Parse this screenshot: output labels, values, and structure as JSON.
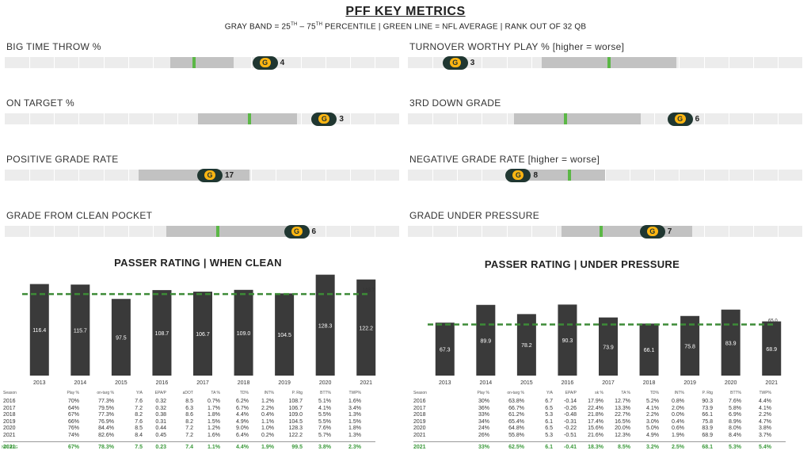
{
  "header": {
    "title": "PFF KEY METRICS",
    "subtitle_pre": "GRAY BAND = 25",
    "sup1": "TH",
    "subtitle_mid": " – 75",
    "sup2": "TH",
    "subtitle_post": " PERCENTILE | GREEN LINE = NFL AVERAGE | RANK OUT OF 32 QB"
  },
  "team_logo": "packers-g-logo",
  "logo_letter": "G",
  "colors": {
    "band": "#c2c2c2",
    "track": "#ececec",
    "avg_line": "#5bb746",
    "bar": "#3a3a3a",
    "avg_dash": "#3d8b37",
    "logo_bg": "#203731",
    "logo_g": "#ffb612"
  },
  "metrics": [
    {
      "label": "BIG TIME THROW %",
      "rank": "4",
      "band": [
        0.42,
        0.58
      ],
      "avg": 0.48,
      "player": 0.66
    },
    {
      "label": "TURNOVER WORTHY PLAY % [higher = worse]",
      "rank": "3",
      "band": [
        0.34,
        0.68
      ],
      "avg": 0.51,
      "player": 0.12
    },
    {
      "label": "ON TARGET %",
      "rank": "3",
      "band": [
        0.49,
        0.74
      ],
      "avg": 0.62,
      "player": 0.81
    },
    {
      "label": "3RD DOWN GRADE",
      "rank": "6",
      "band": [
        0.27,
        0.59
      ],
      "avg": 0.4,
      "player": 0.69
    },
    {
      "label": "POSITIVE GRADE RATE",
      "rank": "17",
      "band": [
        0.34,
        0.62
      ],
      "avg": 0.5,
      "player": 0.52
    },
    {
      "label": "NEGATIVE GRADE RATE [higher = worse]",
      "rank": "8",
      "band": [
        0.27,
        0.5
      ],
      "avg": 0.41,
      "player": 0.28
    },
    {
      "label": "GRADE FROM CLEAN POCKET",
      "rank": "6",
      "band": [
        0.41,
        0.73
      ],
      "avg": 0.54,
      "player": 0.74
    },
    {
      "label": "GRADE UNDER PRESSURE",
      "rank": "7",
      "band": [
        0.39,
        0.72
      ],
      "avg": 0.49,
      "player": 0.62
    }
  ],
  "chart_data": [
    {
      "type": "bar",
      "title": "PASSER RATING | WHEN CLEAN",
      "categories": [
        "2013",
        "2014",
        "2015",
        "2016",
        "2017",
        "2018",
        "2019",
        "2020",
        "2021"
      ],
      "values": [
        116.4,
        115.7,
        97.5,
        108.7,
        106.7,
        109.0,
        104.5,
        128.3,
        122.2
      ],
      "value_labels": [
        "116.4",
        "115.7",
        "97.5",
        "108.7",
        "106.7",
        "109.0",
        "104.5",
        "128.3",
        "122.2"
      ],
      "avg_line": 103.7,
      "avg_label": "103.7",
      "ylim": [
        0,
        135
      ]
    },
    {
      "type": "bar",
      "title": "PASSER RATING | UNDER PRESSURE",
      "categories": [
        "2013",
        "2014",
        "2015",
        "2016",
        "2017",
        "2018",
        "2019",
        "2020",
        "2021"
      ],
      "values": [
        67.3,
        89.9,
        78.2,
        90.3,
        73.9,
        66.1,
        75.8,
        83.9,
        68.9
      ],
      "value_labels": [
        "67.3",
        "89.9",
        "78.2",
        "90.3",
        "73.9",
        "66.1",
        "75.8",
        "83.9",
        "68.9"
      ],
      "avg_line": 65.0,
      "avg_label": "65.0",
      "ylim": [
        0,
        135
      ]
    }
  ],
  "tables": [
    {
      "headers": [
        "Season",
        "Play %",
        "on-targ %",
        "Y/A",
        "EPA/P",
        "aDOT",
        "TA %",
        "TD%",
        "INT%",
        "P. Rtg",
        "BTT%",
        "TWP%"
      ],
      "rows": [
        [
          "2016",
          "70%",
          "77.3%",
          "7.6",
          "0.32",
          "8.5",
          "0.7%",
          "6.2%",
          "1.2%",
          "108.7",
          "5.1%",
          "1.6%"
        ],
        [
          "2017",
          "64%",
          "79.5%",
          "7.2",
          "0.32",
          "6.3",
          "1.7%",
          "6.7%",
          "2.2%",
          "106.7",
          "4.1%",
          "3.4%"
        ],
        [
          "2018",
          "67%",
          "77.3%",
          "8.2",
          "0.38",
          "8.6",
          "1.8%",
          "4.4%",
          "0.4%",
          "109.0",
          "5.5%",
          "1.3%"
        ],
        [
          "2019",
          "66%",
          "76.9%",
          "7.6",
          "0.31",
          "8.2",
          "1.5%",
          "4.9%",
          "1.1%",
          "104.5",
          "5.5%",
          "1.5%"
        ],
        [
          "2020",
          "76%",
          "84.4%",
          "8.5",
          "0.44",
          "7.2",
          "1.2%",
          "9.0%",
          "1.0%",
          "128.3",
          "7.6%",
          "1.8%"
        ],
        [
          "2021",
          "74%",
          "82.6%",
          "8.4",
          "0.45",
          "7.2",
          "1.6%",
          "6.4%",
          "0.2%",
          "122.2",
          "5.7%",
          "1.3%"
        ]
      ],
      "avg_row": [
        "2021",
        "67%",
        "78.3%",
        "7.5",
        "0.23",
        "7.4",
        "1.1%",
        "4.4%",
        "1.9%",
        "99.5",
        "3.8%",
        "2.3%"
      ],
      "avg_label": "NFL AVG"
    },
    {
      "headers": [
        "Season",
        "Play %",
        "on-targ %",
        "Y/A",
        "EPA/P",
        "sk %",
        "TA %",
        "TD%",
        "INT%",
        "P. Rtg",
        "BTT%",
        "TWP%"
      ],
      "rows": [
        [
          "2016",
          "30%",
          "63.8%",
          "6.7",
          "-0.14",
          "17.9%",
          "12.7%",
          "5.2%",
          "0.8%",
          "90.3",
          "7.6%",
          "4.4%"
        ],
        [
          "2017",
          "36%",
          "66.7%",
          "6.5",
          "-0.26",
          "22.4%",
          "13.3%",
          "4.1%",
          "2.0%",
          "73.9",
          "5.8%",
          "4.1%"
        ],
        [
          "2018",
          "33%",
          "61.2%",
          "5.3",
          "-0.48",
          "21.8%",
          "22.7%",
          "2.2%",
          "0.0%",
          "66.1",
          "6.9%",
          "2.2%"
        ],
        [
          "2019",
          "34%",
          "65.4%",
          "6.1",
          "-0.31",
          "17.4%",
          "16.5%",
          "3.0%",
          "0.4%",
          "75.8",
          "8.9%",
          "4.7%"
        ],
        [
          "2020",
          "24%",
          "64.8%",
          "6.5",
          "-0.22",
          "15.6%",
          "20.0%",
          "5.0%",
          "0.6%",
          "83.9",
          "8.0%",
          "3.8%"
        ],
        [
          "2021",
          "26%",
          "55.8%",
          "5.3",
          "-0.51",
          "21.6%",
          "12.3%",
          "4.9%",
          "1.9%",
          "68.9",
          "8.4%",
          "3.7%"
        ]
      ],
      "avg_row": [
        "2021",
        "33%",
        "62.5%",
        "6.1",
        "-0.41",
        "18.3%",
        "8.5%",
        "3.2%",
        "2.5%",
        "68.1",
        "5.3%",
        "5.4%"
      ],
      "avg_label": ""
    }
  ]
}
